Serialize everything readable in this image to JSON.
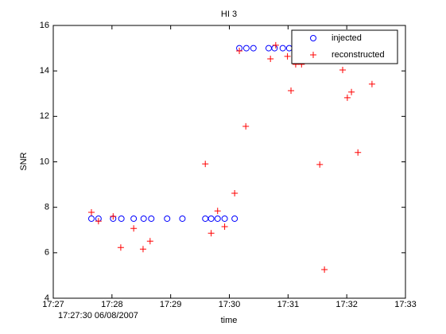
{
  "chart_data": {
    "type": "scatter",
    "title": "HI 3",
    "xlabel": "time",
    "ylabel": "SNR",
    "annotation": "17:27:30 06/08/2007",
    "xlim": [
      27,
      33
    ],
    "xticks": [
      {
        "value": 27,
        "label": "17:27"
      },
      {
        "value": 28,
        "label": "17:28"
      },
      {
        "value": 29,
        "label": "17:29"
      },
      {
        "value": 30,
        "label": "17:30"
      },
      {
        "value": 31,
        "label": "17:31"
      },
      {
        "value": 32,
        "label": "17:32"
      },
      {
        "value": 33,
        "label": "17:33"
      }
    ],
    "ylim": [
      4,
      16
    ],
    "yticks": [
      4,
      6,
      8,
      10,
      12,
      14,
      16
    ],
    "grid": false,
    "legend": "upper right",
    "series": [
      {
        "name": "injected",
        "color": "#0000ff",
        "marker": "o",
        "x": [
          27.65,
          27.77,
          28.02,
          28.16,
          28.37,
          28.54,
          28.67,
          28.94,
          29.2,
          29.59,
          29.69,
          29.8,
          29.92,
          30.09,
          30.17,
          30.29,
          30.41,
          30.67,
          30.77,
          30.91,
          31.02
        ],
        "values": [
          7.5,
          7.5,
          7.5,
          7.5,
          7.5,
          7.5,
          7.5,
          7.5,
          7.5,
          7.5,
          7.5,
          7.5,
          7.5,
          7.5,
          15,
          15,
          15,
          15,
          15,
          15,
          15
        ]
      },
      {
        "name": "reconstructed",
        "color": "#ff0000",
        "marker": "+",
        "x": [
          27.65,
          27.77,
          28.02,
          28.15,
          28.37,
          28.53,
          28.65,
          29.59,
          29.69,
          29.8,
          29.92,
          30.09,
          30.17,
          30.28,
          30.7,
          30.79,
          30.99,
          31.05,
          31.13,
          31.23,
          31.54,
          31.62,
          31.93,
          32.01,
          32.08,
          32.19,
          32.43
        ],
        "values": [
          7.78,
          7.39,
          7.6,
          6.23,
          7.07,
          6.16,
          6.51,
          9.91,
          6.86,
          7.84,
          7.15,
          8.62,
          14.88,
          11.56,
          14.53,
          15.13,
          14.64,
          13.13,
          14.29,
          14.29,
          9.88,
          5.26,
          14.04,
          12.82,
          13.07,
          10.41,
          13.42
        ]
      }
    ]
  }
}
